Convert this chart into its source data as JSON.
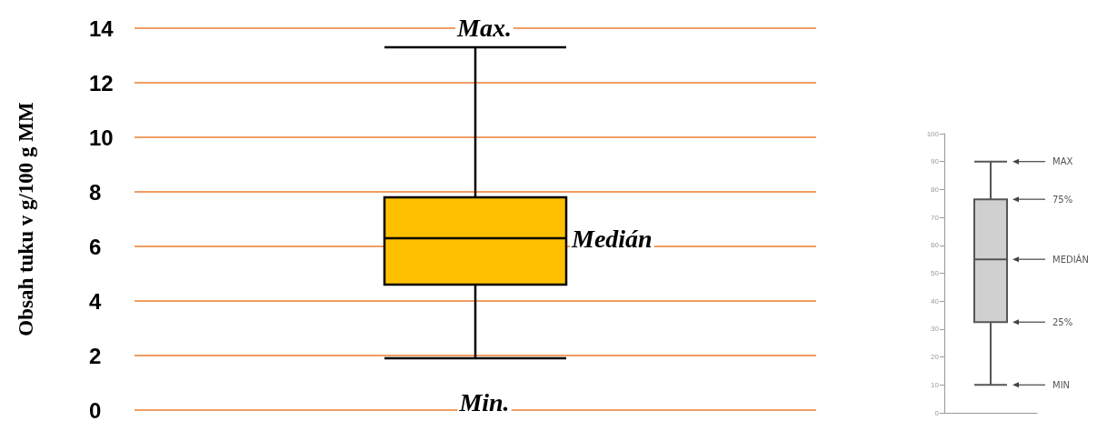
{
  "chart_data": [
    {
      "type": "box",
      "ylabel": "Obsah tuku v g/100 g MM",
      "categories": [
        null
      ],
      "boxes": [
        {
          "low": 1.9,
          "q1": 4.6,
          "median": 6.3,
          "q3": 7.8,
          "high": 13.3
        }
      ],
      "color": "#ffc000",
      "ylim": [
        0,
        14
      ],
      "yticks": [
        0,
        2,
        4,
        6,
        8,
        10,
        12,
        14
      ],
      "grid": "y",
      "annotations": [
        "Max.",
        "Medián",
        "Min."
      ]
    },
    {
      "type": "box",
      "categories": [
        null
      ],
      "boxes": [
        {
          "low": 10,
          "q1": 32.5,
          "median": 55,
          "q3": 76.5,
          "high": 90
        }
      ],
      "color": "#d0d0d0",
      "ylim": [
        0,
        100
      ],
      "yticks": [
        0,
        10,
        20,
        30,
        40,
        50,
        60,
        70,
        80,
        90,
        100
      ],
      "grid": false,
      "annotations": [
        "MAX",
        "75%",
        "MEDIÁN",
        "25%",
        "MIN"
      ]
    }
  ]
}
